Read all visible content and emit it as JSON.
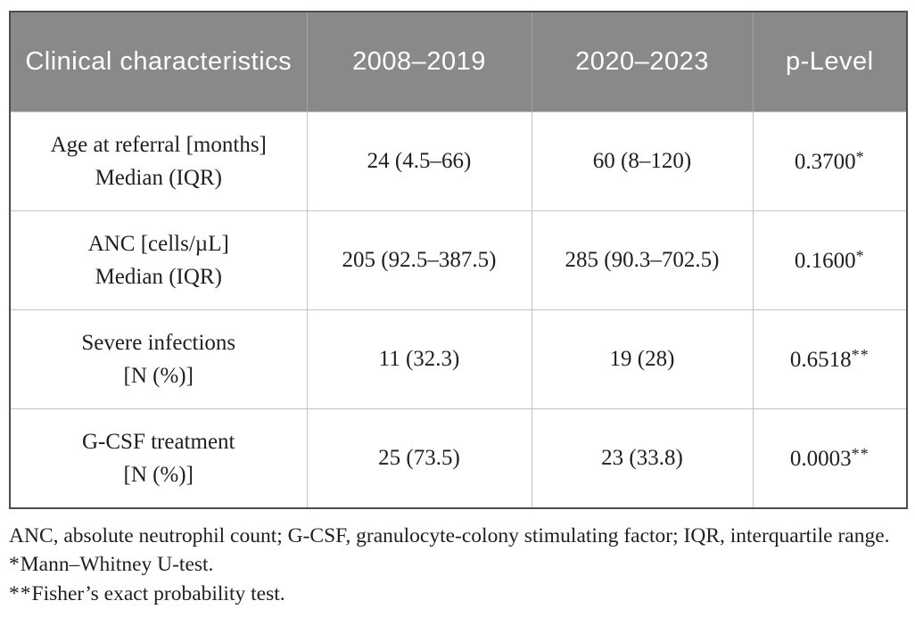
{
  "table": {
    "header": [
      "Clinical characteristics",
      "2008–2019",
      "2020–2023",
      "p-Level"
    ],
    "rows": [
      {
        "label": [
          "Age at referral [months]",
          "Median (IQR)"
        ],
        "values": [
          "24 (4.5–66)",
          "60 (8–120)"
        ],
        "p": "0.3700",
        "p_marker": "*"
      },
      {
        "label": [
          "ANC [cells/µL]",
          "Median (IQR)"
        ],
        "values": [
          "205 (92.5–387.5)",
          "285 (90.3–702.5)"
        ],
        "p": "0.1600",
        "p_marker": "*"
      },
      {
        "label": [
          "Severe infections",
          "[N (%)]"
        ],
        "values": [
          "11 (32.3)",
          "19 (28)"
        ],
        "p": "0.6518",
        "p_marker": "**"
      },
      {
        "label": [
          "G-CSF treatment",
          "[N (%)]"
        ],
        "values": [
          "25 (73.5)",
          "23 (33.8)"
        ],
        "p": "0.0003",
        "p_marker": "**"
      }
    ]
  },
  "footnotes": {
    "abbrev": "ANC, absolute neutrophil count; G-CSF, granulocyte-colony stimulating factor; IQR, interquartile range.",
    "notes": [
      {
        "marker": "*",
        "text": "Mann–Whitney U-test."
      },
      {
        "marker": "**",
        "text": "Fisher’s exact probability test."
      }
    ]
  },
  "colors": {
    "header_bg": "#898989",
    "header_text": "#ffffff",
    "grid_line": "#c3c3c3",
    "outer_border": "#4d4d4d",
    "body_text": "#1f1f1f"
  }
}
